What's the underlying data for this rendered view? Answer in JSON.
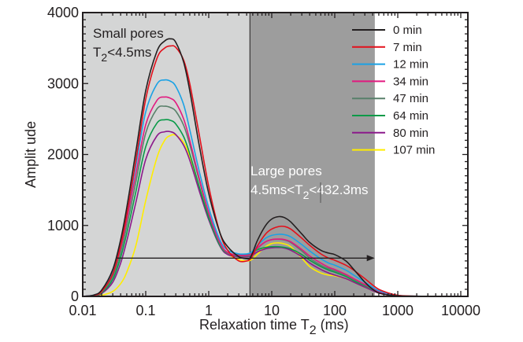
{
  "chart_data": {
    "type": "line",
    "title": "",
    "xlabel": "Relaxation time  T",
    "xlabel_sub": "2",
    "xlabel_unit": " (ms)",
    "ylabel": "Amplit ude",
    "xscale": "log",
    "xlim": [
      0.01,
      12800
    ],
    "ylim": [
      0,
      4000
    ],
    "xticks": [
      {
        "value": 0.01,
        "label": "0.01"
      },
      {
        "value": 0.1,
        "label": "0.1"
      },
      {
        "value": 1,
        "label": "1"
      },
      {
        "value": 10,
        "label": "10"
      },
      {
        "value": 100,
        "label": "100"
      },
      {
        "value": 1000,
        "label": "1000"
      },
      {
        "value": 10000,
        "label": "10000"
      }
    ],
    "yticks": [
      {
        "value": 0,
        "label": "0"
      },
      {
        "value": 1000,
        "label": "1000"
      },
      {
        "value": 2000,
        "label": "2000"
      },
      {
        "value": 3000,
        "label": "3000"
      },
      {
        "value": 4000,
        "label": "4000"
      }
    ],
    "grid": false,
    "legend_position": "top-right",
    "regions": [
      {
        "name": "small-pores",
        "from": 0.01,
        "to": 4.5,
        "color": "#d4d5d5",
        "label_line1": "Small pores",
        "label_line2_pre": "T",
        "label_line2_sub": "2",
        "label_line2_post": "<4.5ms"
      },
      {
        "name": "large-pores",
        "from": 4.5,
        "to": 432.3,
        "color": "#9d9d9d",
        "label_line1": "Large pores",
        "label_line2_pre": "4.5ms<T",
        "label_line2_sub": "2",
        "label_line2_post": "<432.3ms"
      }
    ],
    "arrow": {
      "from_x": 0.035,
      "to_x": 430,
      "y": 540,
      "direction": "right"
    },
    "x": [
      0.01,
      0.015,
      0.02,
      0.03,
      0.04,
      0.05,
      0.07,
      0.1,
      0.15,
      0.2,
      0.25,
      0.3,
      0.4,
      0.5,
      0.7,
      1,
      1.5,
      2,
      3,
      4,
      4.5,
      5,
      6,
      8,
      10,
      13,
      16,
      20,
      30,
      40,
      60,
      80,
      100,
      150,
      200,
      300,
      400,
      500,
      700,
      1000,
      2000,
      5000,
      10000,
      12800
    ],
    "series": [
      {
        "name": "0 min",
        "color": "#231f20",
        "values": [
          0,
          20,
          90,
          380,
          800,
          1250,
          2050,
          2900,
          3450,
          3600,
          3630,
          3580,
          3300,
          2900,
          2150,
          1450,
          900,
          700,
          560,
          530,
          540,
          620,
          800,
          1000,
          1090,
          1125,
          1110,
          1050,
          880,
          760,
          650,
          610,
          590,
          500,
          380,
          200,
          100,
          50,
          20,
          8,
          2,
          0,
          0,
          0
        ]
      },
      {
        "name": "7 min",
        "color": "#e3101b",
        "values": [
          0,
          15,
          70,
          320,
          720,
          1150,
          1920,
          2780,
          3350,
          3500,
          3530,
          3510,
          3330,
          3000,
          2300,
          1550,
          900,
          650,
          500,
          500,
          520,
          580,
          720,
          880,
          950,
          985,
          985,
          950,
          820,
          720,
          600,
          540,
          510,
          440,
          370,
          250,
          160,
          100,
          50,
          15,
          3,
          0,
          0,
          0
        ]
      },
      {
        "name": "12 min",
        "color": "#1ba2e5",
        "values": [
          0,
          18,
          80,
          350,
          740,
          1150,
          1850,
          2600,
          2990,
          3050,
          3030,
          2960,
          2700,
          2350,
          1780,
          1250,
          800,
          650,
          600,
          600,
          610,
          640,
          720,
          820,
          860,
          875,
          870,
          840,
          730,
          640,
          530,
          470,
          440,
          370,
          300,
          200,
          130,
          80,
          40,
          12,
          3,
          0,
          0,
          0
        ]
      },
      {
        "name": "34 min",
        "color": "#e2197f",
        "values": [
          0,
          16,
          70,
          320,
          690,
          1080,
          1730,
          2420,
          2760,
          2810,
          2790,
          2730,
          2500,
          2200,
          1680,
          1180,
          760,
          620,
          580,
          580,
          590,
          620,
          690,
          770,
          800,
          808,
          800,
          770,
          660,
          570,
          470,
          410,
          380,
          310,
          250,
          170,
          110,
          65,
          30,
          10,
          2,
          0,
          0,
          0
        ]
      },
      {
        "name": "47 min",
        "color": "#58806a",
        "values": [
          0,
          14,
          60,
          280,
          620,
          990,
          1620,
          2300,
          2640,
          2680,
          2660,
          2610,
          2410,
          2140,
          1650,
          1160,
          740,
          610,
          570,
          570,
          575,
          600,
          680,
          770,
          800,
          805,
          795,
          760,
          640,
          540,
          440,
          390,
          360,
          300,
          240,
          160,
          100,
          60,
          28,
          9,
          2,
          0,
          0,
          0
        ]
      },
      {
        "name": "64 min",
        "color": "#0a9a48",
        "values": [
          0,
          12,
          50,
          240,
          550,
          890,
          1480,
          2110,
          2440,
          2490,
          2480,
          2430,
          2250,
          2010,
          1560,
          1110,
          720,
          610,
          590,
          590,
          600,
          620,
          660,
          690,
          700,
          700,
          690,
          670,
          590,
          510,
          420,
          370,
          340,
          280,
          220,
          150,
          95,
          55,
          25,
          8,
          2,
          0,
          0,
          0
        ]
      },
      {
        "name": "80 min",
        "color": "#8b1a8b",
        "values": [
          0,
          10,
          40,
          200,
          470,
          780,
          1330,
          1930,
          2260,
          2320,
          2320,
          2280,
          2130,
          1920,
          1500,
          1080,
          710,
          590,
          560,
          560,
          565,
          585,
          630,
          670,
          685,
          690,
          680,
          650,
          560,
          470,
          380,
          330,
          300,
          250,
          200,
          130,
          80,
          45,
          20,
          6,
          1,
          0,
          0,
          0
        ]
      },
      {
        "name": "107 min",
        "color": "#ffed00",
        "values": [
          0,
          5,
          15,
          70,
          180,
          340,
          720,
          1350,
          1950,
          2200,
          2270,
          2270,
          2170,
          1970,
          1560,
          1130,
          750,
          600,
          520,
          500,
          505,
          530,
          600,
          700,
          745,
          755,
          740,
          700,
          540,
          420,
          330,
          300,
          290,
          250,
          200,
          130,
          80,
          45,
          20,
          6,
          1,
          0,
          0,
          0
        ]
      }
    ]
  }
}
